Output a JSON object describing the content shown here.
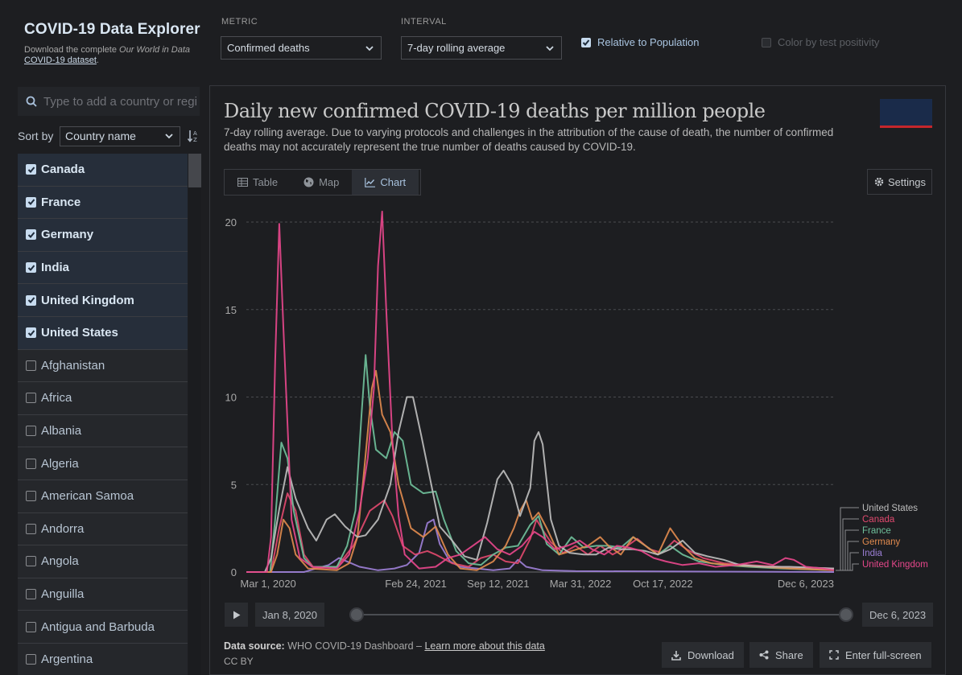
{
  "brand": {
    "title": "COVID-19 Data Explorer",
    "sub_prefix": "Download the complete ",
    "sub_italic": "Our World in Data",
    "sub_link": "COVID-19 dataset",
    "sub_suffix": "."
  },
  "search": {
    "placeholder": "Type to add a country or region..."
  },
  "sort": {
    "label": "Sort by",
    "value": "Country name"
  },
  "countries": [
    {
      "name": "Canada",
      "checked": true
    },
    {
      "name": "France",
      "checked": true
    },
    {
      "name": "Germany",
      "checked": true
    },
    {
      "name": "India",
      "checked": true
    },
    {
      "name": "United Kingdom",
      "checked": true
    },
    {
      "name": "United States",
      "checked": true
    },
    {
      "name": "Afghanistan",
      "checked": false
    },
    {
      "name": "Africa",
      "checked": false
    },
    {
      "name": "Albania",
      "checked": false
    },
    {
      "name": "Algeria",
      "checked": false
    },
    {
      "name": "American Samoa",
      "checked": false
    },
    {
      "name": "Andorra",
      "checked": false
    },
    {
      "name": "Angola",
      "checked": false
    },
    {
      "name": "Anguilla",
      "checked": false
    },
    {
      "name": "Antigua and Barbuda",
      "checked": false
    },
    {
      "name": "Argentina",
      "checked": false
    }
  ],
  "controls": {
    "metric_label": "METRIC",
    "metric_value": "Confirmed deaths",
    "interval_label": "INTERVAL",
    "interval_value": "7-day rolling average",
    "relative_label": "Relative to Population",
    "positivity_label": "Color by test positivity"
  },
  "card": {
    "title": "Daily new confirmed COVID-19 deaths per million people",
    "subtitle": "7-day rolling average. Due to varying protocols and challenges in the attribution of the cause of death, the number of confirmed deaths may not accurately represent the true number of deaths caused by COVID-19.",
    "tabs": [
      "Table",
      "Map",
      "Chart"
    ],
    "settings_label": "Settings",
    "start_date": "Jan 8, 2020",
    "end_date": "Dec 6, 2023",
    "source_label": "Data source:",
    "source_value": "WHO COVID-19 Dashboard",
    "source_sep": " – ",
    "source_link": "Learn more about this data",
    "license": "CC BY",
    "buttons": [
      "Download",
      "Share",
      "Enter full-screen"
    ]
  },
  "colors": {
    "United States": "#bdbdbd",
    "Canada": "#e0496e",
    "France": "#6fbf9a",
    "Germany": "#e08a4e",
    "India": "#9c7fd6",
    "United Kingdom": "#e6478b"
  },
  "chart_data": {
    "type": "line",
    "yticks": [
      0,
      5,
      10,
      15,
      20
    ],
    "ylim": [
      0,
      21
    ],
    "xticks": [
      "Mar 1, 2020",
      "Feb 24, 2021",
      "Sep 12, 2021",
      "Mar 31, 2022",
      "Oct 17, 2022",
      "Dec 6, 2023"
    ],
    "xtick_t": [
      53,
      412,
      612,
      812,
      1012,
      1428
    ],
    "x_range_days": [
      0,
      1428
    ],
    "legend": [
      "United States",
      "Canada",
      "France",
      "Germany",
      "India",
      "United Kingdom"
    ],
    "series": [
      {
        "name": "United States",
        "points": [
          [
            0,
            0
          ],
          [
            45,
            0
          ],
          [
            60,
            0.8
          ],
          [
            80,
            3.6
          ],
          [
            100,
            6.0
          ],
          [
            120,
            4.2
          ],
          [
            150,
            2.5
          ],
          [
            170,
            1.8
          ],
          [
            195,
            3.0
          ],
          [
            215,
            3.3
          ],
          [
            240,
            2.6
          ],
          [
            270,
            2.0
          ],
          [
            290,
            2.1
          ],
          [
            320,
            3.0
          ],
          [
            350,
            5.0
          ],
          [
            370,
            8.0
          ],
          [
            390,
            10.0
          ],
          [
            405,
            10.0
          ],
          [
            425,
            7.8
          ],
          [
            445,
            5.5
          ],
          [
            470,
            2.6
          ],
          [
            500,
            1.8
          ],
          [
            530,
            0.9
          ],
          [
            560,
            0.7
          ],
          [
            585,
            2.8
          ],
          [
            610,
            5.3
          ],
          [
            625,
            5.8
          ],
          [
            645,
            5.0
          ],
          [
            665,
            3.2
          ],
          [
            690,
            4.8
          ],
          [
            700,
            7.5
          ],
          [
            710,
            8.0
          ],
          [
            720,
            7.3
          ],
          [
            740,
            3.0
          ],
          [
            760,
            1.5
          ],
          [
            785,
            1.1
          ],
          [
            820,
            1.0
          ],
          [
            850,
            1.0
          ],
          [
            880,
            1.4
          ],
          [
            910,
            1.3
          ],
          [
            940,
            1.3
          ],
          [
            970,
            1.2
          ],
          [
            1000,
            1.0
          ],
          [
            1030,
            1.3
          ],
          [
            1060,
            1.8
          ],
          [
            1090,
            1.1
          ],
          [
            1120,
            0.9
          ],
          [
            1160,
            0.7
          ],
          [
            1200,
            0.4
          ],
          [
            1260,
            0.3
          ],
          [
            1320,
            0.3
          ],
          [
            1428,
            0.2
          ]
        ]
      },
      {
        "name": "Canada",
        "points": [
          [
            0,
            0
          ],
          [
            60,
            0
          ],
          [
            80,
            2.5
          ],
          [
            100,
            4.5
          ],
          [
            120,
            3.5
          ],
          [
            140,
            1.0
          ],
          [
            165,
            0.2
          ],
          [
            220,
            0.3
          ],
          [
            260,
            1.5
          ],
          [
            300,
            3.5
          ],
          [
            335,
            4.1
          ],
          [
            355,
            3.2
          ],
          [
            380,
            1.5
          ],
          [
            410,
            1.0
          ],
          [
            440,
            1.2
          ],
          [
            460,
            1.0
          ],
          [
            500,
            0.5
          ],
          [
            540,
            0.3
          ],
          [
            570,
            0.8
          ],
          [
            600,
            1.0
          ],
          [
            630,
            0.6
          ],
          [
            660,
            0.5
          ],
          [
            690,
            1.9
          ],
          [
            705,
            3.0
          ],
          [
            720,
            2.4
          ],
          [
            740,
            1.7
          ],
          [
            770,
            1.1
          ],
          [
            800,
            1.5
          ],
          [
            830,
            1.0
          ],
          [
            860,
            1.5
          ],
          [
            890,
            1.0
          ],
          [
            920,
            1.4
          ],
          [
            950,
            1.9
          ],
          [
            980,
            1.3
          ],
          [
            1010,
            1.1
          ],
          [
            1040,
            1.8
          ],
          [
            1070,
            1.3
          ],
          [
            1110,
            0.8
          ],
          [
            1160,
            0.5
          ],
          [
            1220,
            0.4
          ],
          [
            1300,
            0.3
          ],
          [
            1428,
            0.2
          ]
        ]
      },
      {
        "name": "France",
        "points": [
          [
            0,
            0
          ],
          [
            58,
            0
          ],
          [
            70,
            3.0
          ],
          [
            85,
            7.4
          ],
          [
            100,
            6.5
          ],
          [
            115,
            3.5
          ],
          [
            140,
            0.8
          ],
          [
            160,
            0.3
          ],
          [
            220,
            0.3
          ],
          [
            245,
            1.5
          ],
          [
            265,
            3.5
          ],
          [
            280,
            9.0
          ],
          [
            290,
            12.4
          ],
          [
            300,
            9.5
          ],
          [
            315,
            7.0
          ],
          [
            340,
            6.5
          ],
          [
            360,
            8.0
          ],
          [
            380,
            7.5
          ],
          [
            400,
            5.0
          ],
          [
            430,
            4.5
          ],
          [
            460,
            4.6
          ],
          [
            480,
            3.0
          ],
          [
            510,
            1.2
          ],
          [
            540,
            0.5
          ],
          [
            570,
            0.4
          ],
          [
            600,
            1.0
          ],
          [
            630,
            1.4
          ],
          [
            660,
            1.5
          ],
          [
            690,
            2.7
          ],
          [
            710,
            3.2
          ],
          [
            730,
            1.6
          ],
          [
            760,
            1.0
          ],
          [
            790,
            2.0
          ],
          [
            820,
            1.4
          ],
          [
            850,
            1.5
          ],
          [
            880,
            1.5
          ],
          [
            910,
            1.4
          ],
          [
            940,
            2.0
          ],
          [
            970,
            1.5
          ],
          [
            1000,
            1.0
          ],
          [
            1030,
            1.5
          ],
          [
            1060,
            1.0
          ],
          [
            1100,
            0.6
          ],
          [
            1160,
            0.4
          ],
          [
            1220,
            0.3
          ],
          [
            1300,
            0.2
          ],
          [
            1428,
            0.1
          ]
        ]
      },
      {
        "name": "Germany",
        "points": [
          [
            0,
            0
          ],
          [
            60,
            0
          ],
          [
            75,
            1.0
          ],
          [
            90,
            3.0
          ],
          [
            105,
            2.5
          ],
          [
            120,
            1.0
          ],
          [
            150,
            0.2
          ],
          [
            220,
            0.1
          ],
          [
            250,
            0.5
          ],
          [
            270,
            2.0
          ],
          [
            285,
            5.5
          ],
          [
            295,
            8.0
          ],
          [
            305,
            10.5
          ],
          [
            315,
            11.5
          ],
          [
            330,
            9.0
          ],
          [
            350,
            8.0
          ],
          [
            370,
            5.0
          ],
          [
            400,
            2.5
          ],
          [
            430,
            2.0
          ],
          [
            460,
            2.6
          ],
          [
            490,
            1.0
          ],
          [
            520,
            0.2
          ],
          [
            560,
            0.1
          ],
          [
            600,
            0.6
          ],
          [
            630,
            1.5
          ],
          [
            650,
            2.5
          ],
          [
            665,
            3.5
          ],
          [
            680,
            4.1
          ],
          [
            695,
            3.0
          ],
          [
            710,
            3.4
          ],
          [
            730,
            2.5
          ],
          [
            760,
            1.0
          ],
          [
            790,
            1.2
          ],
          [
            830,
            1.5
          ],
          [
            860,
            2.0
          ],
          [
            880,
            1.5
          ],
          [
            910,
            1.0
          ],
          [
            940,
            2.0
          ],
          [
            970,
            1.5
          ],
          [
            1000,
            1.0
          ],
          [
            1030,
            2.5
          ],
          [
            1060,
            1.5
          ],
          [
            1090,
            0.8
          ],
          [
            1130,
            0.5
          ],
          [
            1180,
            0.4
          ],
          [
            1250,
            0.3
          ],
          [
            1320,
            0.2
          ],
          [
            1428,
            0.1
          ]
        ]
      },
      {
        "name": "India",
        "points": [
          [
            0,
            0
          ],
          [
            140,
            0
          ],
          [
            170,
            0.2
          ],
          [
            200,
            0.4
          ],
          [
            225,
            0.8
          ],
          [
            245,
            0.6
          ],
          [
            275,
            0.3
          ],
          [
            320,
            0.1
          ],
          [
            360,
            0.2
          ],
          [
            390,
            0.4
          ],
          [
            420,
            1.1
          ],
          [
            440,
            2.8
          ],
          [
            455,
            3.0
          ],
          [
            470,
            1.6
          ],
          [
            495,
            0.6
          ],
          [
            520,
            0.3
          ],
          [
            560,
            0.2
          ],
          [
            600,
            0.1
          ],
          [
            640,
            0.2
          ],
          [
            660,
            0.7
          ],
          [
            680,
            0.3
          ],
          [
            720,
            0.1
          ],
          [
            800,
            0.05
          ],
          [
            1428,
            0
          ]
        ]
      },
      {
        "name": "United Kingdom",
        "points": [
          [
            0,
            0
          ],
          [
            50,
            0
          ],
          [
            60,
            2.0
          ],
          [
            70,
            12.0
          ],
          [
            80,
            19.9
          ],
          [
            90,
            14.0
          ],
          [
            110,
            3.0
          ],
          [
            130,
            0.8
          ],
          [
            160,
            0.3
          ],
          [
            220,
            0.2
          ],
          [
            250,
            1.0
          ],
          [
            275,
            3.5
          ],
          [
            295,
            6.5
          ],
          [
            310,
            10.5
          ],
          [
            320,
            17.5
          ],
          [
            330,
            20.6
          ],
          [
            340,
            15.0
          ],
          [
            355,
            7.5
          ],
          [
            370,
            3.2
          ],
          [
            385,
            1.0
          ],
          [
            420,
            0.2
          ],
          [
            460,
            0.3
          ],
          [
            490,
            0.8
          ],
          [
            520,
            1.0
          ],
          [
            550,
            1.5
          ],
          [
            580,
            2.0
          ],
          [
            610,
            1.3
          ],
          [
            640,
            1.0
          ],
          [
            670,
            1.5
          ],
          [
            700,
            2.3
          ],
          [
            720,
            2.0
          ],
          [
            750,
            1.3
          ],
          [
            780,
            1.5
          ],
          [
            810,
            1.8
          ],
          [
            840,
            1.3
          ],
          [
            870,
            1.0
          ],
          [
            900,
            1.5
          ],
          [
            930,
            1.4
          ],
          [
            960,
            1.2
          ],
          [
            990,
            0.8
          ],
          [
            1020,
            0.6
          ],
          [
            1060,
            0.4
          ],
          [
            1100,
            0.5
          ],
          [
            1140,
            0.3
          ],
          [
            1190,
            0.4
          ],
          [
            1240,
            0.6
          ],
          [
            1280,
            0.4
          ],
          [
            1310,
            0.8
          ],
          [
            1330,
            0.7
          ],
          [
            1360,
            0.3
          ],
          [
            1400,
            0.2
          ],
          [
            1428,
            0.1
          ]
        ]
      }
    ]
  }
}
